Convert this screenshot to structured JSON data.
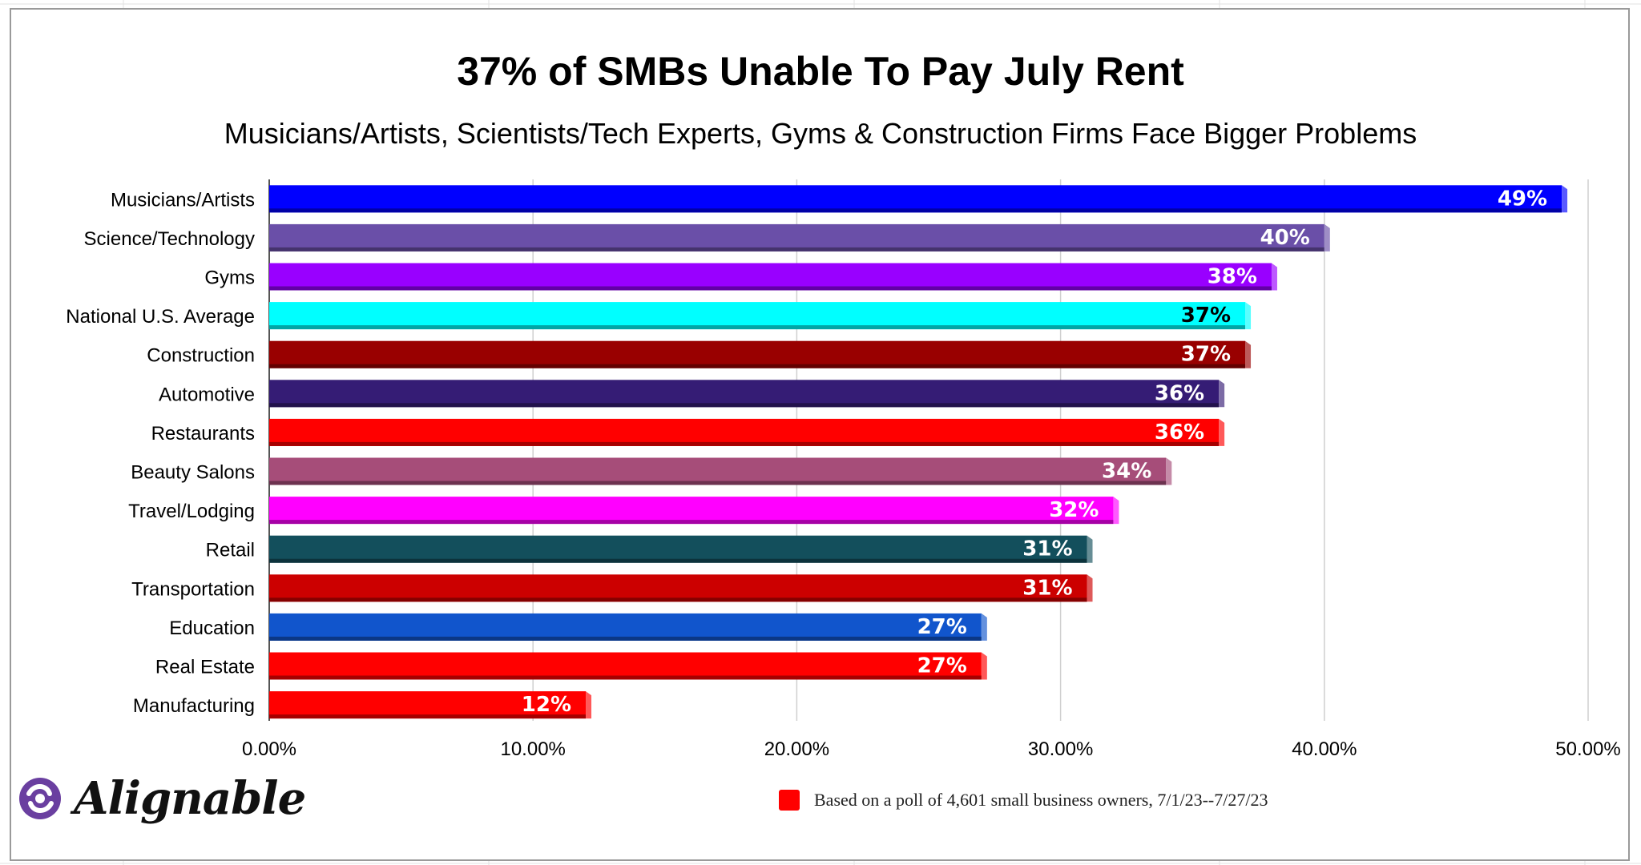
{
  "chart_data": {
    "type": "bar",
    "orientation": "horizontal",
    "title": "37% of SMBs Unable To Pay July Rent",
    "subtitle": "Musicians/Artists, Scientists/Tech Experts, Gyms & Construction Firms Face Bigger Problems",
    "categories": [
      "Musicians/Artists",
      "Science/Technology",
      "Gyms",
      "National U.S. Average",
      "Construction",
      "Automotive",
      "Restaurants",
      "Beauty Salons",
      "Travel/Lodging",
      "Retail",
      "Transportation",
      "Education",
      "Real Estate",
      "Manufacturing"
    ],
    "values": [
      49,
      40,
      38,
      37,
      37,
      36,
      36,
      34,
      32,
      31,
      31,
      27,
      27,
      12
    ],
    "data_labels": [
      "49%",
      "40%",
      "38%",
      "37%",
      "37%",
      "36%",
      "36%",
      "34%",
      "32%",
      "31%",
      "31%",
      "27%",
      "27%",
      "12%"
    ],
    "bar_colors": [
      "#0000ff",
      "#6a4fa8",
      "#9900ff",
      "#00ffff",
      "#990000",
      "#351c75",
      "#ff0000",
      "#a64d79",
      "#ff00ff",
      "#134f5c",
      "#cc0000",
      "#1155cc",
      "#ff0000",
      "#ff0000"
    ],
    "label_colors": [
      "#ffffff",
      "#ffffff",
      "#ffffff",
      "#000000",
      "#ffffff",
      "#ffffff",
      "#ffffff",
      "#ffffff",
      "#ffffff",
      "#ffffff",
      "#ffffff",
      "#ffffff",
      "#ffffff",
      "#ffffff"
    ],
    "x_ticks": [
      "0.00%",
      "10.00%",
      "20.00%",
      "30.00%",
      "40.00%",
      "50.00%"
    ],
    "xlim": [
      0,
      50
    ],
    "grid": true,
    "legend": {
      "label": "Based on a poll of 4,601 small business owners, 7/1/23--7/27/23",
      "color": "#ff0000",
      "position": "bottom"
    }
  },
  "brand": {
    "name": "Alignable",
    "logo_color": "#6a3fa0"
  }
}
